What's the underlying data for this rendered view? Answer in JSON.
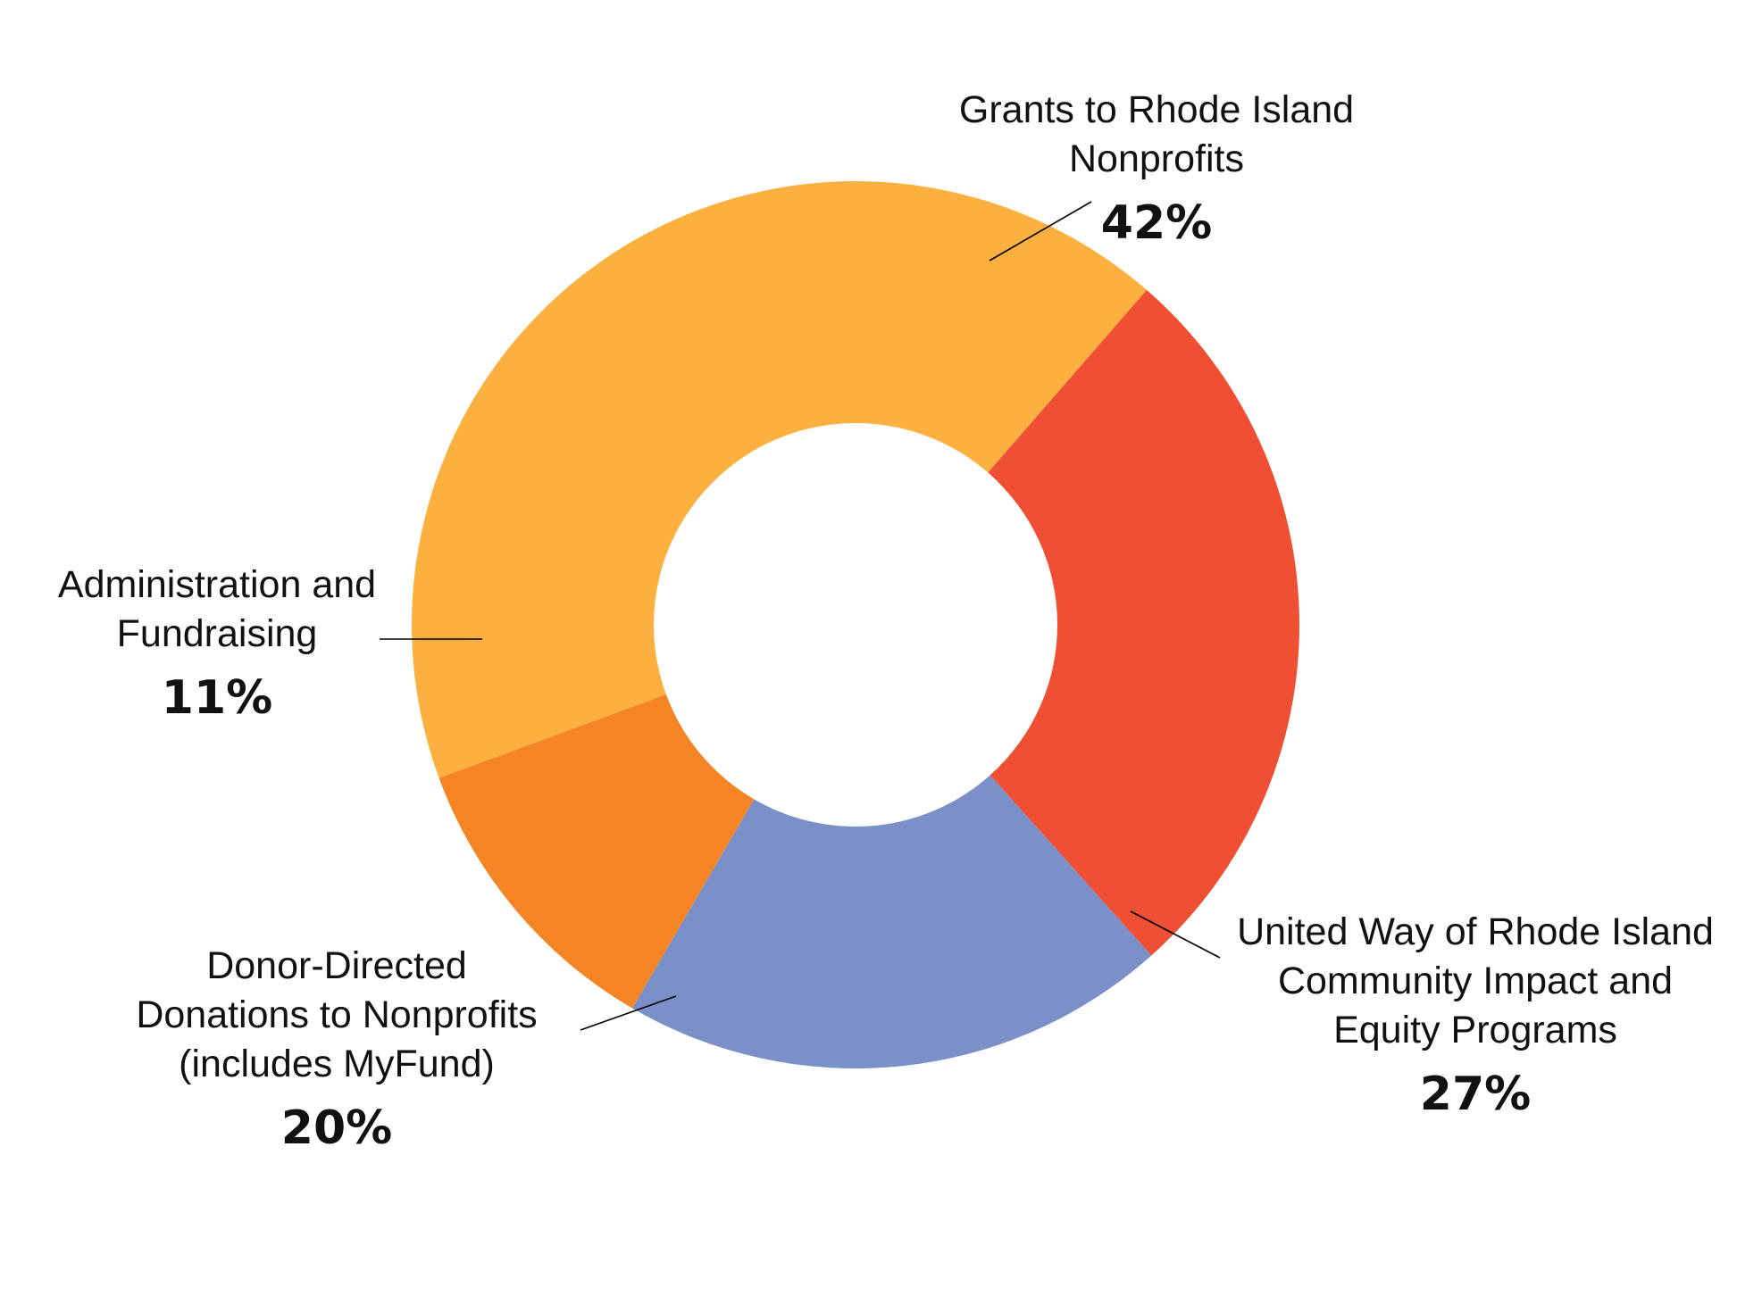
{
  "chart_data": {
    "type": "pie",
    "donut": true,
    "title": "",
    "legend": "none",
    "slices": [
      {
        "label_lines": [
          "Grants to Rhode Island",
          "Nonprofits"
        ],
        "value": 42,
        "value_label": "42%",
        "color": "#FBB040"
      },
      {
        "label_lines": [
          "United Way of Rhode Island",
          "Community Impact and",
          "Equity Programs"
        ],
        "value": 27,
        "value_label": "27%",
        "color": "#EF4F33"
      },
      {
        "label_lines": [
          "Donor-Directed",
          "Donations to Nonprofits",
          "(includes MyFund)"
        ],
        "value": 20,
        "value_label": "20%",
        "color": "#7B90C8"
      },
      {
        "label_lines": [
          "Administration and",
          "Fundraising"
        ],
        "value": 11,
        "value_label": "11%",
        "color": "#F48424"
      }
    ]
  }
}
